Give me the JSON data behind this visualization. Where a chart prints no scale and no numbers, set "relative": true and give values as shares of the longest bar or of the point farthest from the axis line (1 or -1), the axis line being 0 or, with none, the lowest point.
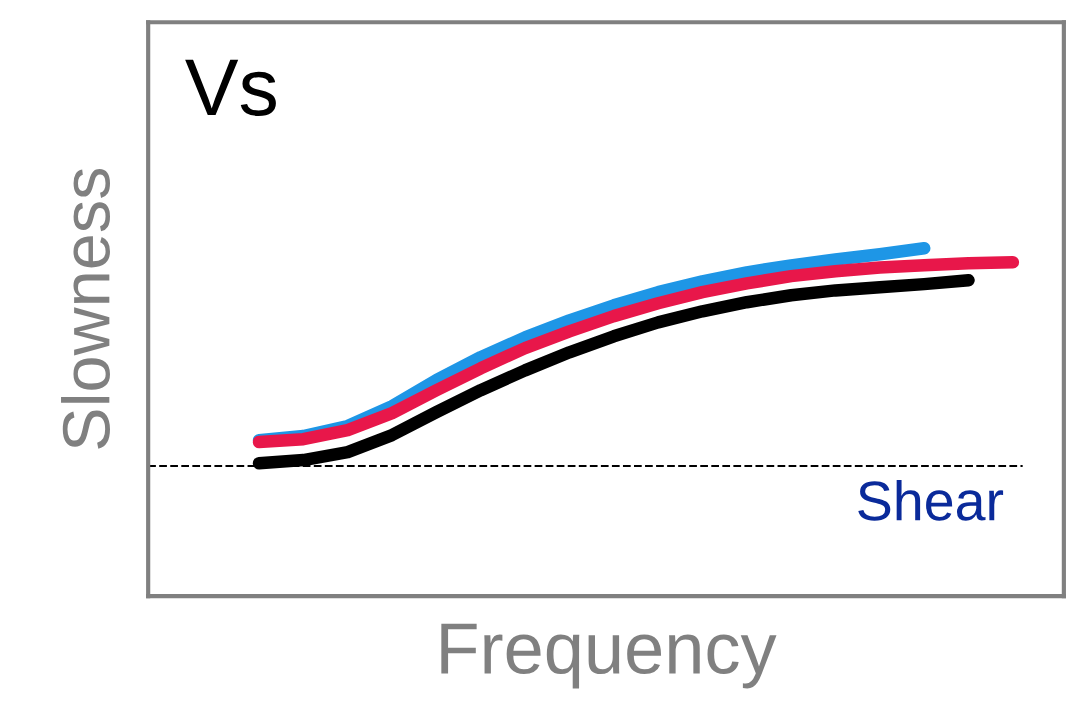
{
  "chart_data": {
    "type": "line",
    "relative": true,
    "xlabel": "Frequency",
    "ylabel": "Slowness",
    "annotations": [
      "Vs"
    ],
    "categories": [
      null,
      null,
      null,
      null,
      null,
      null,
      null,
      null,
      null,
      null,
      null,
      null,
      null,
      null,
      null,
      null,
      null,
      null
    ],
    "series": [
      {
        "color": "#1e96e6",
        "values": [
          0.448,
          0.46,
          0.489,
          0.546,
          0.621,
          0.687,
          0.744,
          0.793,
          0.836,
          0.874,
          0.905,
          0.931,
          0.951,
          0.968,
          0.983,
          1.0,
          null,
          null
        ]
      },
      {
        "color": "#000000",
        "values": [
          0.382,
          0.391,
          0.414,
          0.463,
          0.529,
          0.592,
          0.649,
          0.701,
          0.747,
          0.787,
          0.819,
          0.845,
          0.865,
          0.879,
          0.888,
          0.897,
          0.908,
          null
        ]
      },
      {
        "color": "#e8174a",
        "values": [
          0.443,
          0.451,
          0.477,
          0.526,
          0.592,
          0.655,
          0.713,
          0.761,
          0.805,
          0.842,
          0.874,
          0.899,
          0.92,
          0.934,
          0.945,
          0.951,
          0.957,
          0.96
        ]
      }
    ],
    "ref_lines": [
      {
        "axis": "y",
        "value": 0.374,
        "label": "Shear",
        "color": "#000000",
        "line_style": "dashed"
      }
    ],
    "line_style": "solid"
  }
}
